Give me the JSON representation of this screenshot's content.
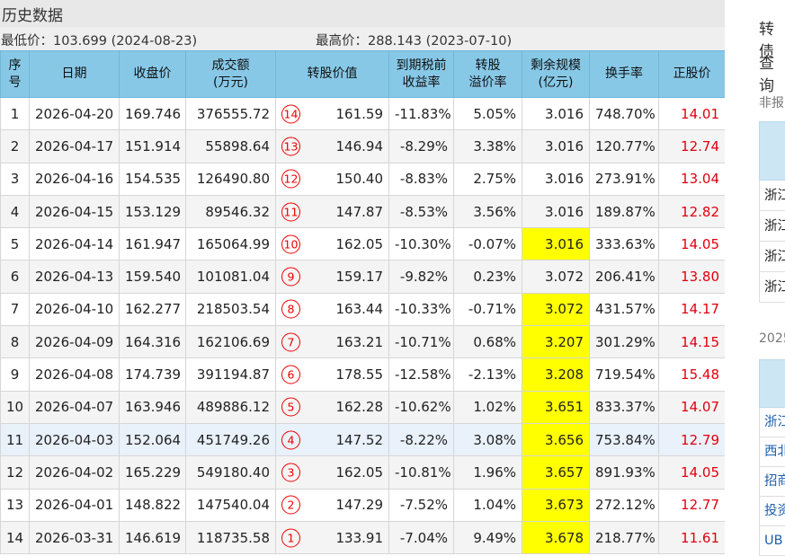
{
  "history": {
    "title": "历史数据",
    "low_label": "最低价：103.699 (2024-08-23)",
    "high_label": "最高价：288.143 (2023-07-10)",
    "columns": [
      "序号",
      "日期",
      "收盘价",
      "成交额(万元)",
      "转股价值",
      "到期税前收益率",
      "转股溢价率",
      "剩余规模(亿元)",
      "换手率",
      "正股价"
    ],
    "rows": [
      {
        "no": "1",
        "date": "2026-04-20",
        "close": "169.746",
        "amount": "376555.72",
        "badge": "14",
        "conv": "161.59",
        "ytm": "-11.83%",
        "premium": "5.05%",
        "remain": "3.016",
        "turnover": "748.70%",
        "stock": "14.01",
        "hl": false
      },
      {
        "no": "2",
        "date": "2026-04-17",
        "close": "151.914",
        "amount": "55898.64",
        "badge": "13",
        "conv": "146.94",
        "ytm": "-8.29%",
        "premium": "3.38%",
        "remain": "3.016",
        "turnover": "120.77%",
        "stock": "12.74",
        "hl": false
      },
      {
        "no": "3",
        "date": "2026-04-16",
        "close": "154.535",
        "amount": "126490.80",
        "badge": "12",
        "conv": "150.40",
        "ytm": "-8.83%",
        "premium": "2.75%",
        "remain": "3.016",
        "turnover": "273.91%",
        "stock": "13.04",
        "hl": false
      },
      {
        "no": "4",
        "date": "2026-04-15",
        "close": "153.129",
        "amount": "89546.32",
        "badge": "11",
        "conv": "147.87",
        "ytm": "-8.53%",
        "premium": "3.56%",
        "remain": "3.016",
        "turnover": "189.87%",
        "stock": "12.82",
        "hl": false
      },
      {
        "no": "5",
        "date": "2026-04-14",
        "close": "161.947",
        "amount": "165064.99",
        "badge": "10",
        "conv": "162.05",
        "ytm": "-10.30%",
        "premium": "-0.07%",
        "remain": "3.016",
        "turnover": "333.63%",
        "stock": "14.05",
        "hl": true
      },
      {
        "no": "6",
        "date": "2026-04-13",
        "close": "159.540",
        "amount": "101081.04",
        "badge": "9",
        "conv": "159.17",
        "ytm": "-9.82%",
        "premium": "0.23%",
        "remain": "3.072",
        "turnover": "206.41%",
        "stock": "13.80",
        "hl": false
      },
      {
        "no": "7",
        "date": "2026-04-10",
        "close": "162.277",
        "amount": "218503.54",
        "badge": "8",
        "conv": "163.44",
        "ytm": "-10.33%",
        "premium": "-0.71%",
        "remain": "3.072",
        "turnover": "431.57%",
        "stock": "14.17",
        "hl": true
      },
      {
        "no": "8",
        "date": "2026-04-09",
        "close": "164.316",
        "amount": "162106.69",
        "badge": "7",
        "conv": "163.21",
        "ytm": "-10.71%",
        "premium": "0.68%",
        "remain": "3.207",
        "turnover": "301.29%",
        "stock": "14.15",
        "hl": true
      },
      {
        "no": "9",
        "date": "2026-04-08",
        "close": "174.739",
        "amount": "391194.87",
        "badge": "6",
        "conv": "178.55",
        "ytm": "-12.58%",
        "premium": "-2.13%",
        "remain": "3.208",
        "turnover": "719.54%",
        "stock": "15.48",
        "hl": true
      },
      {
        "no": "10",
        "date": "2026-04-07",
        "close": "163.946",
        "amount": "489886.12",
        "badge": "5",
        "conv": "162.28",
        "ytm": "-10.62%",
        "premium": "1.02%",
        "remain": "3.651",
        "turnover": "833.37%",
        "stock": "14.07",
        "hl": true
      },
      {
        "no": "11",
        "date": "2026-04-03",
        "close": "152.064",
        "amount": "451749.26",
        "badge": "4",
        "conv": "147.52",
        "ytm": "-8.22%",
        "premium": "3.08%",
        "remain": "3.656",
        "turnover": "753.84%",
        "stock": "12.79",
        "hl": true
      },
      {
        "no": "12",
        "date": "2026-04-02",
        "close": "165.229",
        "amount": "549180.40",
        "badge": "3",
        "conv": "162.05",
        "ytm": "-10.81%",
        "premium": "1.96%",
        "remain": "3.657",
        "turnover": "891.93%",
        "stock": "14.05",
        "hl": true
      },
      {
        "no": "13",
        "date": "2026-04-01",
        "close": "148.822",
        "amount": "147540.04",
        "badge": "2",
        "conv": "147.29",
        "ytm": "-7.52%",
        "premium": "1.04%",
        "remain": "3.673",
        "turnover": "272.12%",
        "stock": "12.77",
        "hl": true
      },
      {
        "no": "14",
        "date": "2026-03-31",
        "close": "146.619",
        "amount": "118735.58",
        "badge": "1",
        "conv": "133.91",
        "ytm": "-7.04%",
        "premium": "9.49%",
        "remain": "3.678",
        "turnover": "218.77%",
        "stock": "11.61",
        "hl": true
      }
    ]
  },
  "sidebar": {
    "line1": "转债",
    "line2": "查询",
    "section1": "非报",
    "list1": [
      "浙江",
      "浙江",
      "浙江",
      "浙江"
    ],
    "section2": "2025",
    "list2": [
      "浙江",
      "西北",
      "招商",
      "投资",
      "UB"
    ]
  },
  "colors": {
    "header_bg": "#87c8e7",
    "highlight": "#ffff00",
    "stock_price": "#e0000e",
    "badge": "#e00000"
  }
}
